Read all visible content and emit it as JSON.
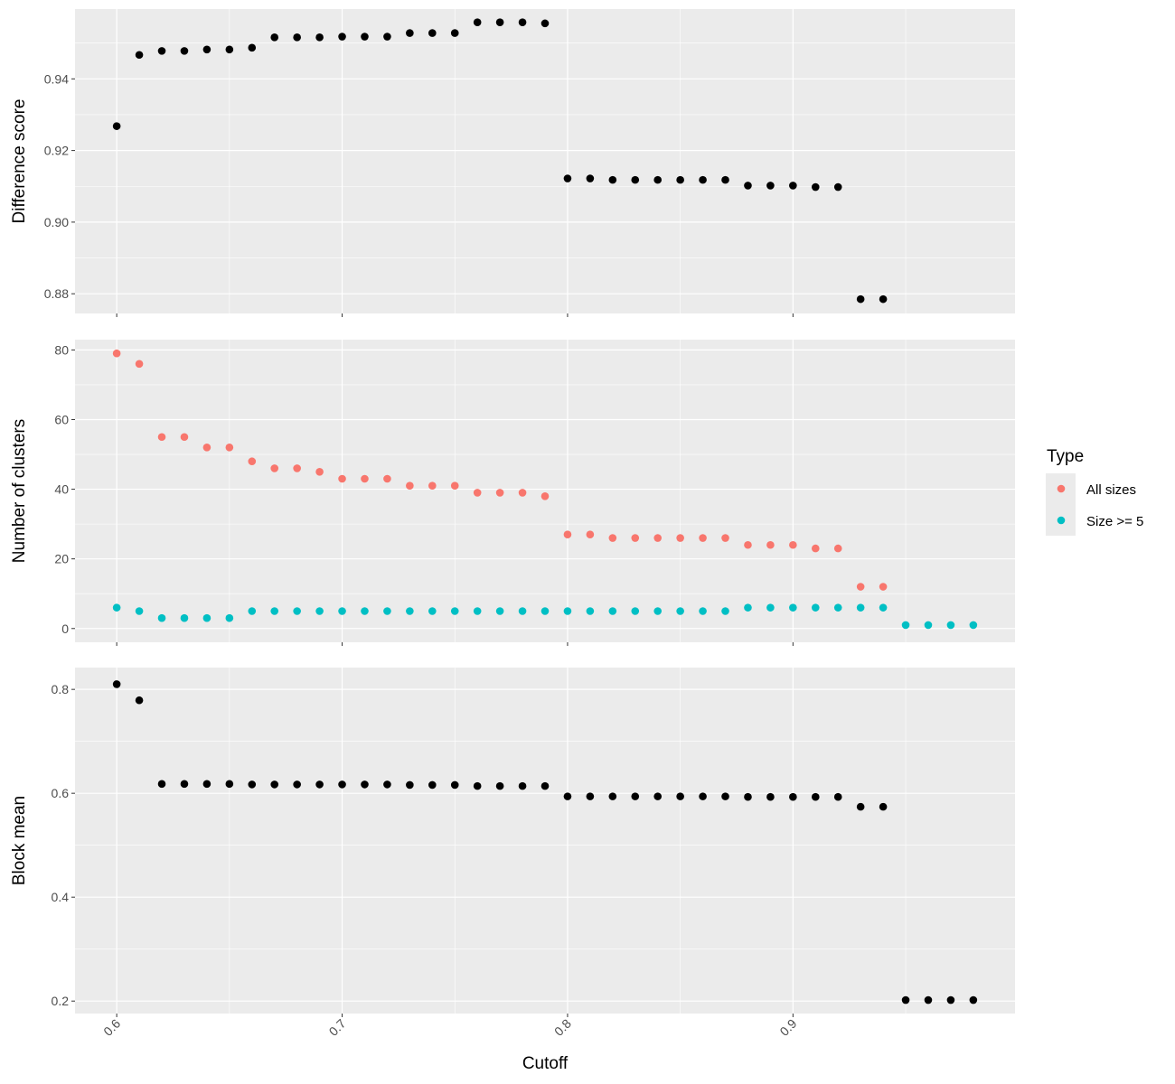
{
  "chart_data": {
    "type": "scatter",
    "xlabel": "Cutoff",
    "x_ticks": [
      0.6,
      0.7,
      0.8,
      0.9
    ],
    "x_tick_labels": [
      "0.6",
      "0.7",
      "0.8",
      "0.9"
    ],
    "xlim": [
      0.5815,
      0.9985
    ],
    "grid": true,
    "panel_background": "#ebebeb",
    "grid_color": "#ffffff",
    "legend": {
      "title": "Type",
      "placement": "right",
      "entries": [
        {
          "label": "All sizes",
          "color": "#f8766d"
        },
        {
          "label": "Size >= 5",
          "color": "#00bfc4"
        }
      ]
    },
    "panels": [
      {
        "ylabel": "Difference score",
        "ylim": [
          0.8745,
          0.9595
        ],
        "y_ticks": [
          0.88,
          0.9,
          0.92,
          0.94
        ],
        "y_tick_labels": [
          "0.88",
          "0.90",
          "0.92",
          "0.94"
        ],
        "series": [
          {
            "color": "#000000",
            "x": [
              0.6,
              0.61,
              0.62,
              0.63,
              0.64,
              0.65,
              0.66,
              0.67,
              0.68,
              0.69,
              0.7,
              0.71,
              0.72,
              0.73,
              0.74,
              0.75,
              0.76,
              0.77,
              0.78,
              0.79,
              0.8,
              0.81,
              0.82,
              0.83,
              0.84,
              0.85,
              0.86,
              0.87,
              0.88,
              0.89,
              0.9,
              0.91,
              0.92,
              0.93,
              0.94
            ],
            "y": [
              0.9268,
              0.9467,
              0.9478,
              0.9478,
              0.9482,
              0.9482,
              0.9487,
              0.9516,
              0.9516,
              0.9516,
              0.9518,
              0.9518,
              0.9518,
              0.9528,
              0.9528,
              0.9528,
              0.9558,
              0.9558,
              0.9558,
              0.9555,
              0.9122,
              0.9122,
              0.9118,
              0.9118,
              0.9118,
              0.9118,
              0.9118,
              0.9118,
              0.9102,
              0.9102,
              0.9102,
              0.9098,
              0.9098,
              0.8785,
              0.8785
            ]
          }
        ]
      },
      {
        "ylabel": "Number of clusters",
        "ylim": [
          -3.95,
          82.95
        ],
        "y_ticks": [
          0,
          20,
          40,
          60,
          80
        ],
        "y_tick_labels": [
          "0",
          "20",
          "40",
          "60",
          "80"
        ],
        "series": [
          {
            "name": "All sizes",
            "color": "#f8766d",
            "x": [
              0.6,
              0.61,
              0.62,
              0.63,
              0.64,
              0.65,
              0.66,
              0.67,
              0.68,
              0.69,
              0.7,
              0.71,
              0.72,
              0.73,
              0.74,
              0.75,
              0.76,
              0.77,
              0.78,
              0.79,
              0.8,
              0.81,
              0.82,
              0.83,
              0.84,
              0.85,
              0.86,
              0.87,
              0.88,
              0.89,
              0.9,
              0.91,
              0.92,
              0.93,
              0.94
            ],
            "y": [
              79,
              76,
              55,
              55,
              52,
              52,
              48,
              46,
              46,
              45,
              43,
              43,
              43,
              41,
              41,
              41,
              39,
              39,
              39,
              38,
              27,
              27,
              26,
              26,
              26,
              26,
              26,
              26,
              24,
              24,
              24,
              23,
              23,
              12,
              12
            ]
          },
          {
            "name": "Size >= 5",
            "color": "#00bfc4",
            "x": [
              0.6,
              0.61,
              0.62,
              0.63,
              0.64,
              0.65,
              0.66,
              0.67,
              0.68,
              0.69,
              0.7,
              0.71,
              0.72,
              0.73,
              0.74,
              0.75,
              0.76,
              0.77,
              0.78,
              0.79,
              0.8,
              0.81,
              0.82,
              0.83,
              0.84,
              0.85,
              0.86,
              0.87,
              0.88,
              0.89,
              0.9,
              0.91,
              0.92,
              0.93,
              0.94,
              0.95,
              0.96,
              0.97,
              0.98
            ],
            "y": [
              6,
              5,
              3,
              3,
              3,
              3,
              5,
              5,
              5,
              5,
              5,
              5,
              5,
              5,
              5,
              5,
              5,
              5,
              5,
              5,
              5,
              5,
              5,
              5,
              5,
              5,
              5,
              5,
              6,
              6,
              6,
              6,
              6,
              6,
              6,
              1,
              1,
              1,
              1
            ]
          }
        ]
      },
      {
        "ylabel": "Block mean",
        "ylim": [
          0.176,
          0.842
        ],
        "y_ticks": [
          0.2,
          0.4,
          0.6,
          0.8
        ],
        "y_tick_labels": [
          "0.2",
          "0.4",
          "0.6",
          "0.8"
        ],
        "series": [
          {
            "color": "#000000",
            "x": [
              0.6,
              0.61,
              0.62,
              0.63,
              0.64,
              0.65,
              0.66,
              0.67,
              0.68,
              0.69,
              0.7,
              0.71,
              0.72,
              0.73,
              0.74,
              0.75,
              0.76,
              0.77,
              0.78,
              0.79,
              0.8,
              0.81,
              0.82,
              0.83,
              0.84,
              0.85,
              0.86,
              0.87,
              0.88,
              0.89,
              0.9,
              0.91,
              0.92,
              0.93,
              0.94,
              0.95,
              0.96,
              0.97,
              0.98
            ],
            "y": [
              0.81,
              0.779,
              0.618,
              0.618,
              0.618,
              0.618,
              0.617,
              0.617,
              0.617,
              0.617,
              0.617,
              0.617,
              0.617,
              0.616,
              0.616,
              0.616,
              0.614,
              0.614,
              0.614,
              0.614,
              0.594,
              0.594,
              0.594,
              0.594,
              0.594,
              0.594,
              0.594,
              0.594,
              0.593,
              0.593,
              0.593,
              0.593,
              0.593,
              0.574,
              0.574,
              0.202,
              0.202,
              0.202,
              0.202
            ]
          }
        ]
      }
    ]
  }
}
